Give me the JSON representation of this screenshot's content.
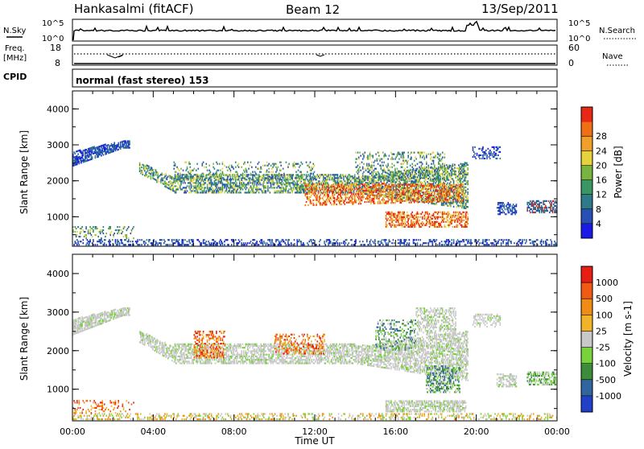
{
  "header": {
    "left": "Hankasalmi (fitACF)",
    "center": "Beam 12",
    "right": "13/Sep/2011"
  },
  "nsky_panel": {
    "left_label": "N.Sky",
    "right_label": "N.Search",
    "tick_top": "10^5",
    "tick_bottom": "10^0"
  },
  "freq_panel": {
    "label_line1": "Freq.",
    "label_line2": "[MHz]",
    "left_ticks": [
      "18",
      "8"
    ],
    "right_label": "Nave",
    "right_ticks": [
      "60",
      "0"
    ]
  },
  "cpid_panel": {
    "label": "CPID",
    "text": "normal (fast stereo) 153"
  },
  "chart_data": [
    {
      "type": "heatmap",
      "name": "power",
      "ylabel": "Slant Range [km]",
      "ylim": [
        180,
        4500
      ],
      "yticks": [
        "1000",
        "2000",
        "3000",
        "4000"
      ],
      "colorbar": {
        "label": "Power [dB]",
        "range": [
          0,
          32
        ],
        "ticks": [
          "4",
          "8",
          "12",
          "16",
          "20",
          "24",
          "28"
        ],
        "colors": [
          "#1a1ae6",
          "#2850b4",
          "#2e7a8a",
          "#3a9664",
          "#78b440",
          "#e6d23c",
          "#f0a028",
          "#f06e14",
          "#e62814"
        ]
      }
    },
    {
      "type": "heatmap",
      "name": "velocity",
      "ylabel": "Slant Range [km]",
      "ylim": [
        180,
        4500
      ],
      "yticks": [
        "1000",
        "2000",
        "3000",
        "4000"
      ],
      "colorbar": {
        "label": "Velocity [m s-1]",
        "ticks": [
          "1000",
          "500",
          "100",
          "25",
          "-25",
          "-100",
          "-500",
          "-1000"
        ],
        "colors": [
          "#2040c8",
          "#3264a0",
          "#3c8c3c",
          "#78d23c",
          "#c8c8c8",
          "#f0b428",
          "#f08c14",
          "#f05a14",
          "#e61e14"
        ]
      }
    }
  ],
  "time_axis": {
    "xlabel": "Time UT",
    "xlim": [
      0,
      24
    ],
    "ticks": [
      "00:00",
      "04:00",
      "08:00",
      "12:00",
      "16:00",
      "20:00",
      "00:00"
    ]
  }
}
